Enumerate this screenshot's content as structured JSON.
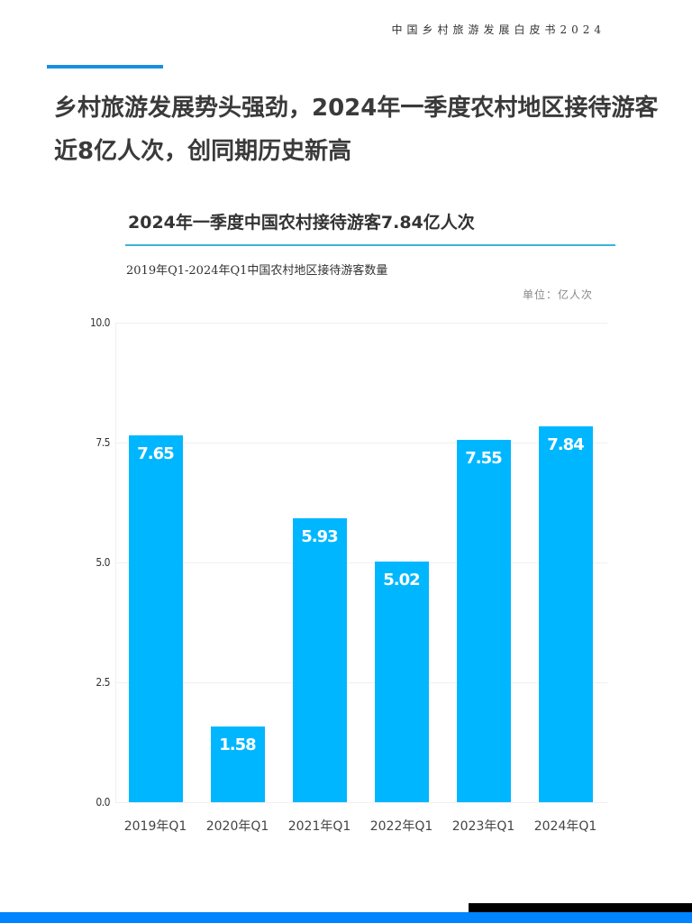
{
  "header": {
    "label": "中国乡村旅游发展白皮书2024"
  },
  "main_title": "乡村旅游发展势头强劲，2024年一季度农村地区接待游客近8亿人次，创同期历史新高",
  "chart": {
    "title": "2024年一季度中国农村接待游客7.84亿人次",
    "subtitle": "2019年Q1-2024年Q1中国农村地区接待游客数量",
    "unit": "单位：亿人次"
  },
  "colors": {
    "bar": "#00b7ff",
    "accent": "#1a8ee0",
    "rule": "#3bb4d8",
    "footer_blue": "#0084ff",
    "footer_black": "#000000"
  },
  "chart_data": {
    "type": "bar",
    "title": "2024年一季度中国农村接待游客7.84亿人次",
    "subtitle": "2019年Q1-2024年Q1中国农村地区接待游客数量",
    "xlabel": "",
    "ylabel": "单位：亿人次",
    "categories": [
      "2019年Q1",
      "2020年Q1",
      "2021年Q1",
      "2022年Q1",
      "2023年Q1",
      "2024年Q1"
    ],
    "values": [
      7.65,
      1.58,
      5.93,
      5.02,
      7.55,
      7.84
    ],
    "value_labels": [
      "7.65",
      "1.58",
      "5.93",
      "5.02",
      "7.55",
      "7.84"
    ],
    "ylim": [
      0,
      10
    ],
    "yticks": [
      "0.0",
      "2.5",
      "5.0",
      "7.5",
      "10.0"
    ],
    "grid": true,
    "legend": "none"
  }
}
